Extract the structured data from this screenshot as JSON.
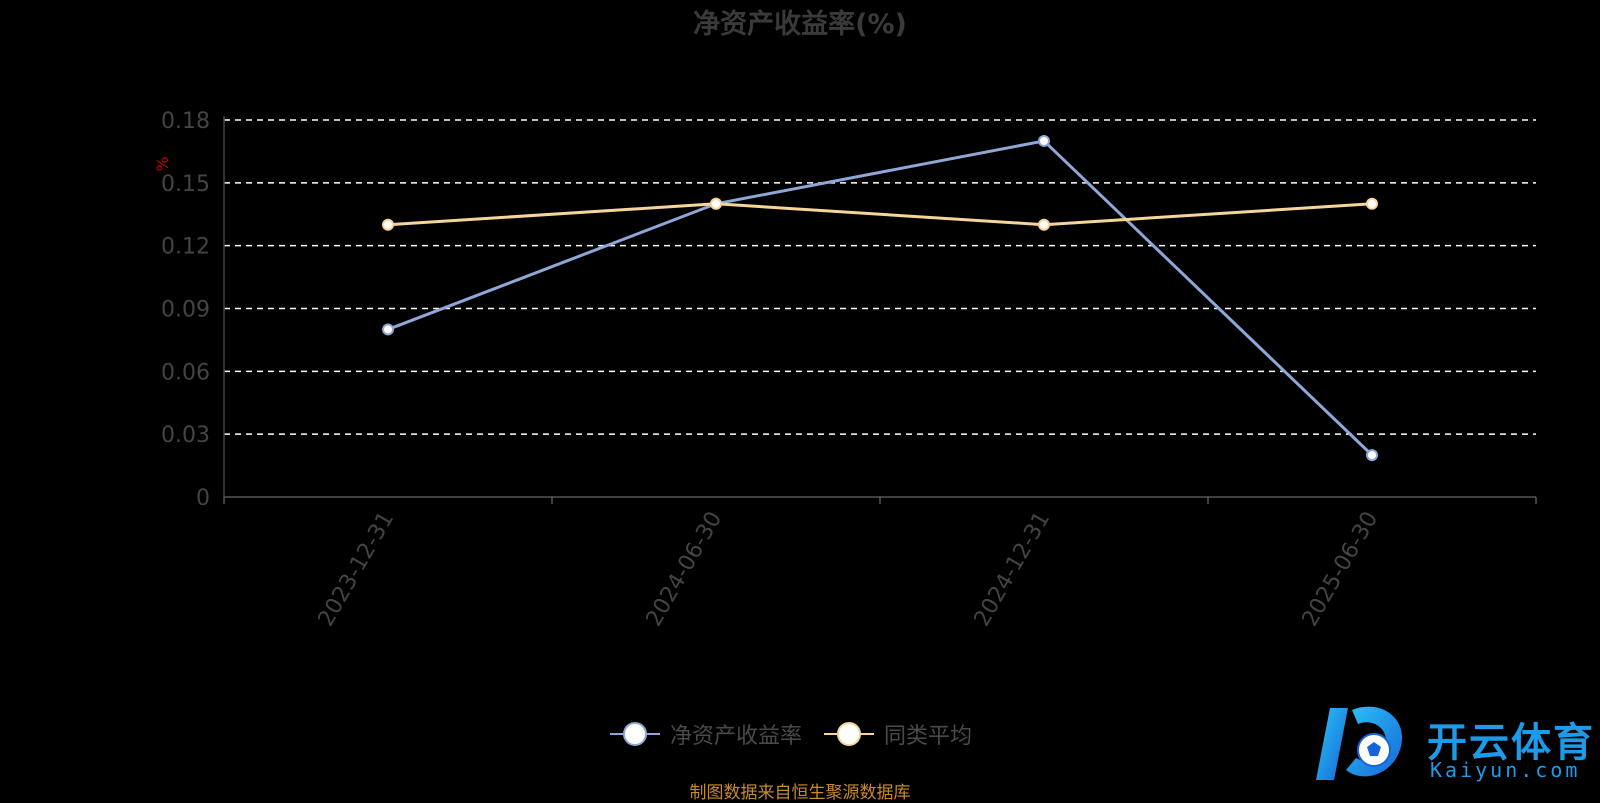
{
  "chart_data": {
    "type": "line",
    "title": "净资产收益率(%)",
    "ylabel": "%",
    "ylim": [
      0,
      0.18
    ],
    "yticks": [
      "0",
      "0.03",
      "0.06",
      "0.09",
      "0.12",
      "0.15",
      "0.18"
    ],
    "categories": [
      "2023-12-31",
      "2024-06-30",
      "2024-12-31",
      "2025-06-30"
    ],
    "grid": true,
    "legend_position": "bottom",
    "series": [
      {
        "name": "净资产收益率",
        "values": [
          0.08,
          0.14,
          0.17,
          0.02
        ],
        "color": "#8ea7d6"
      },
      {
        "name": "同类平均",
        "values": [
          0.13,
          0.14,
          0.13,
          0.14
        ],
        "color": "#f6d59a"
      }
    ]
  },
  "source_note": "制图数据来自恒生聚源数据库",
  "logo": {
    "name": "开云体育",
    "sub": "Kaiyun.com"
  },
  "colors": {
    "background": "#000000",
    "grid": "#ffffff",
    "axis_label": "#444444",
    "ylabel": "#c00000"
  }
}
